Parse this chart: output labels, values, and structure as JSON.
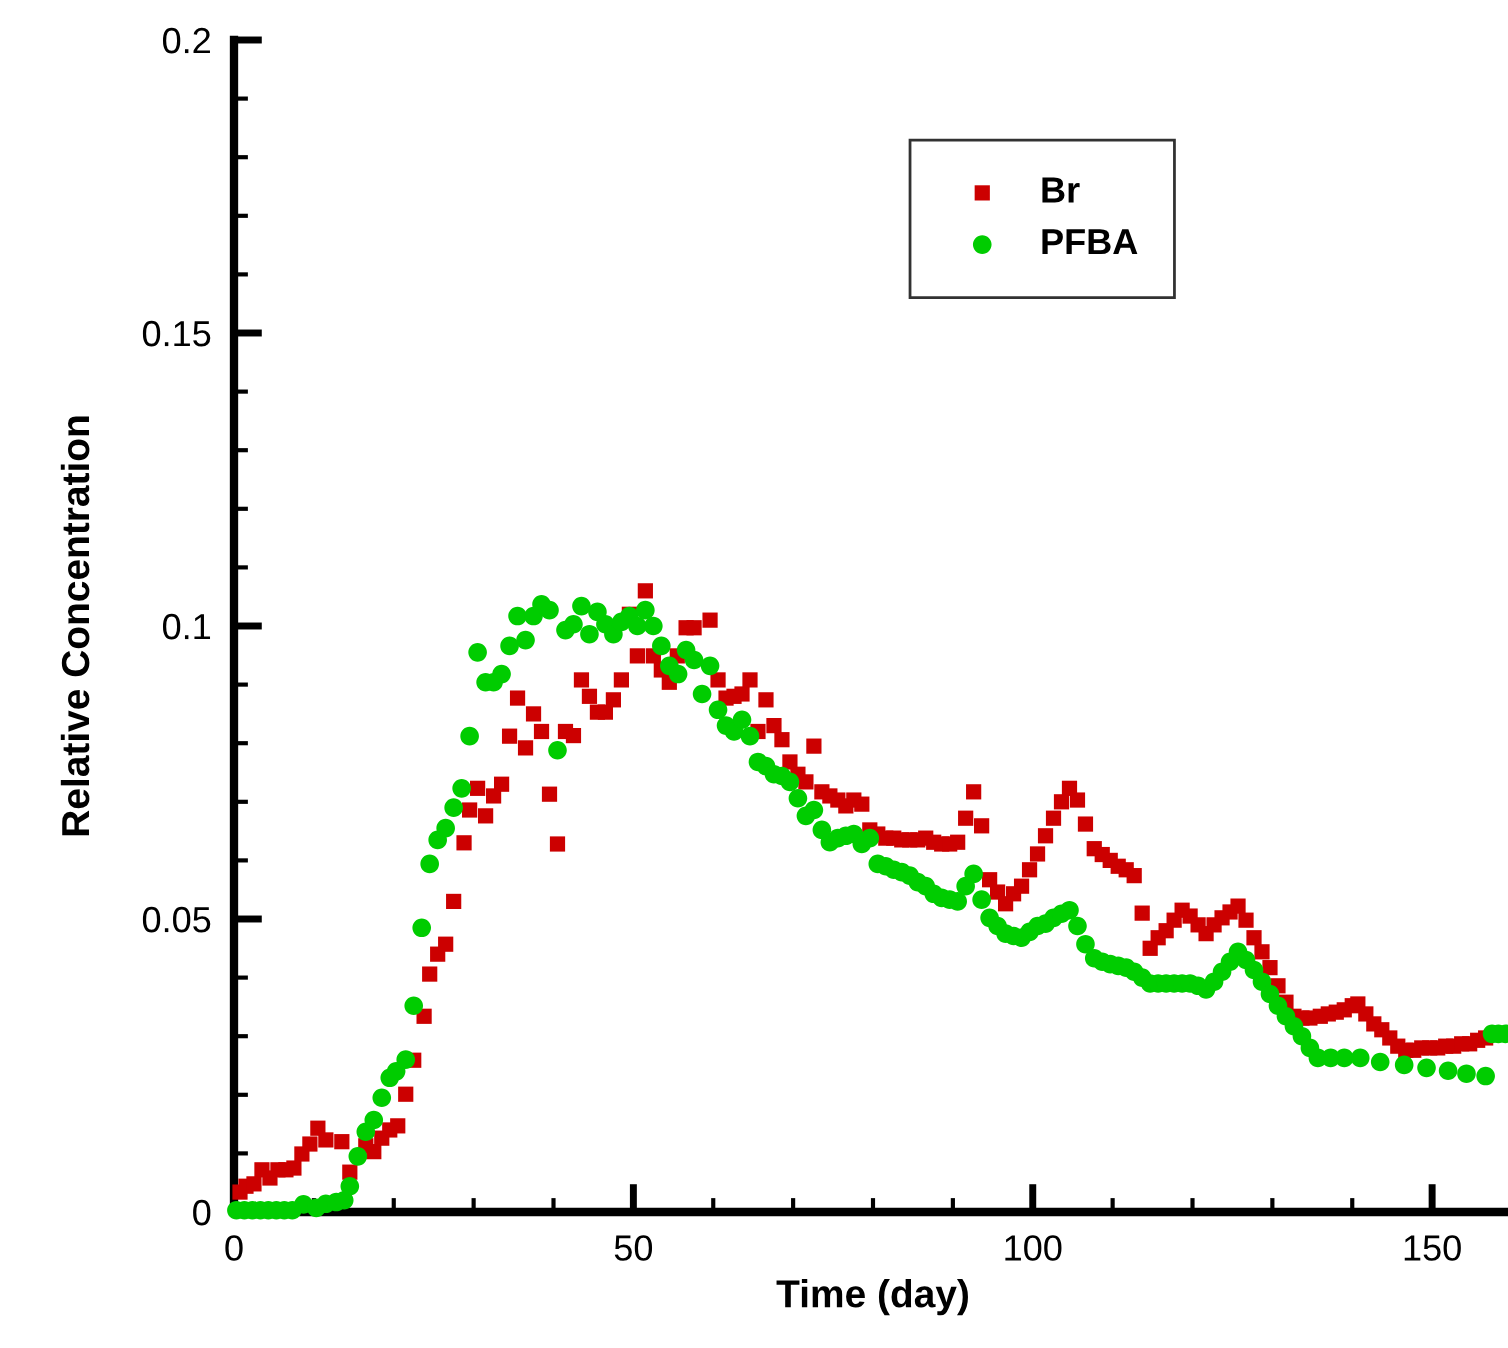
{
  "chart_data": {
    "type": "scatter",
    "xlabel": "Time (day)",
    "ylabel": "Relative Concentration",
    "xlim": [
      0,
      160
    ],
    "ylim": [
      0,
      0.2
    ],
    "xticks": [
      0,
      50,
      100,
      150
    ],
    "yticks": [
      0,
      0.05,
      0.1,
      0.15,
      0.2
    ],
    "grid": false,
    "legend": "top right",
    "series": [
      {
        "name": "Br",
        "color": "#cc0000",
        "marker": "square",
        "x": [
          0.75,
          1.5,
          2.5,
          3.5,
          4.5,
          5.5,
          6.5,
          7.5,
          8.5,
          9.5,
          10.5,
          11.5,
          13.5,
          14.5,
          16.5,
          17.5,
          18.5,
          19.5,
          20.5,
          21.5,
          22.5,
          23.8,
          24.5,
          25.5,
          26.5,
          27.5,
          28.8,
          29.5,
          30.5,
          31.5,
          32.5,
          33.5,
          34.5,
          35.5,
          36.5,
          37.5,
          38.5,
          39.5,
          40.5,
          41.5,
          42.5,
          43.5,
          44.5,
          45.5,
          46.5,
          47.5,
          48.5,
          49.5,
          50.5,
          51.5,
          52.5,
          53.5,
          54.5,
          55.5,
          56.6,
          57.6,
          59.6,
          60.6,
          61.6,
          62.6,
          63.6,
          64.6,
          65.6,
          66.6,
          67.6,
          68.6,
          69.6,
          70.6,
          71.6,
          72.6,
          73.6,
          74.6,
          75.6,
          76.6,
          77.6,
          78.6,
          79.6,
          80.6,
          81.6,
          82.6,
          83.6,
          84.6,
          85.6,
          86.6,
          87.6,
          88.6,
          89.6,
          90.6,
          91.6,
          92.6,
          93.6,
          94.6,
          95.6,
          96.6,
          97.6,
          98.6,
          99.6,
          100.6,
          101.6,
          102.6,
          103.6,
          104.6,
          105.6,
          106.6,
          107.7,
          108.7,
          109.7,
          110.7,
          111.7,
          112.7,
          113.7,
          114.7,
          115.7,
          116.7,
          117.7,
          118.7,
          119.7,
          120.7,
          121.7,
          122.7,
          123.7,
          124.7,
          125.7,
          126.7,
          127.7,
          128.7,
          129.7,
          130.7,
          131.7,
          132.7,
          133.7,
          134.7,
          136,
          137,
          138,
          139,
          140,
          140.7,
          141.7,
          142.7,
          143.7,
          144.7,
          145.7,
          146.7,
          147.7,
          148.7,
          149.7,
          150.7,
          151.7,
          152.7,
          153.7,
          154.7,
          155.7,
          156.7
        ],
        "values": [
          0.0034,
          0.0044,
          0.0048,
          0.0072,
          0.0058,
          0.0072,
          0.0072,
          0.0075,
          0.0099,
          0.0116,
          0.0143,
          0.0123,
          0.012,
          0.0068,
          0.0113,
          0.0103,
          0.0126,
          0.014,
          0.0147,
          0.0201,
          0.0259,
          0.0334,
          0.0406,
          0.044,
          0.0457,
          0.053,
          0.063,
          0.0686,
          0.0723,
          0.0676,
          0.071,
          0.073,
          0.0812,
          0.0877,
          0.0792,
          0.085,
          0.082,
          0.0713,
          0.0628,
          0.082,
          0.0813,
          0.0908,
          0.088,
          0.0853,
          0.0853,
          0.0874,
          0.0908,
          0.102,
          0.0949,
          0.106,
          0.0949,
          0.0925,
          0.0904,
          0.0949,
          0.0997,
          0.0997,
          0.101,
          0.0908,
          0.0877,
          0.088,
          0.0884,
          0.0908,
          0.082,
          0.0874,
          0.083,
          0.0806,
          0.0768,
          0.0747,
          0.0734,
          0.0795,
          0.0717,
          0.071,
          0.0703,
          0.0693,
          0.0703,
          0.0696,
          0.0652,
          0.0645,
          0.0638,
          0.0638,
          0.0635,
          0.0635,
          0.0635,
          0.0638,
          0.0631,
          0.0628,
          0.0628,
          0.0631,
          0.0672,
          0.0717,
          0.0659,
          0.0567,
          0.0546,
          0.0526,
          0.0543,
          0.0556,
          0.0584,
          0.0611,
          0.0642,
          0.0672,
          0.07,
          0.0723,
          0.0703,
          0.0662,
          0.062,
          0.061,
          0.06,
          0.059,
          0.0584,
          0.0574,
          0.051,
          0.045,
          0.0468,
          0.048,
          0.0498,
          0.0515,
          0.0505,
          0.049,
          0.0475,
          0.049,
          0.0502,
          0.0512,
          0.0522,
          0.0498,
          0.0468,
          0.0444,
          0.0417,
          0.0386,
          0.0358,
          0.0334,
          0.0331,
          0.0331,
          0.0334,
          0.0338,
          0.0341,
          0.0345,
          0.0352,
          0.0355,
          0.0338,
          0.0321,
          0.0311,
          0.0297,
          0.0283,
          0.0276,
          0.0276,
          0.028,
          0.028,
          0.028,
          0.0283,
          0.0283,
          0.0287,
          0.0287,
          0.0293,
          0.0297
        ]
      },
      {
        "name": "PFBA",
        "color": "#00cc00",
        "marker": "circle",
        "x": [
          0.3,
          1.3,
          2.3,
          3.3,
          4.3,
          5.3,
          6.3,
          7.3,
          8.7,
          10.3,
          11.5,
          12.8,
          13.8,
          14.5,
          15.5,
          16.5,
          17.5,
          18.5,
          19.5,
          20.3,
          21.5,
          22.5,
          23.5,
          24.5,
          25.5,
          26.5,
          27.5,
          28.5,
          29.5,
          30.5,
          31.5,
          32.5,
          33.5,
          34.5,
          35.5,
          36.5,
          37.5,
          38.5,
          39.5,
          40.5,
          41.5,
          42.5,
          43.5,
          44.5,
          45.5,
          46.5,
          47.5,
          48.5,
          49.5,
          50.5,
          51.5,
          52.5,
          53.5,
          54.5,
          55.6,
          56.6,
          57.6,
          58.6,
          59.6,
          60.6,
          61.6,
          62.6,
          63.6,
          64.6,
          65.6,
          66.6,
          67.6,
          68.6,
          69.6,
          70.6,
          71.6,
          72.6,
          73.6,
          74.6,
          75.6,
          76.6,
          77.6,
          78.6,
          79.6,
          80.6,
          81.6,
          82.6,
          83.6,
          84.6,
          85.6,
          86.6,
          87.6,
          88.6,
          89.6,
          90.6,
          91.6,
          92.6,
          93.6,
          94.6,
          95.6,
          96.6,
          97.6,
          98.6,
          99.6,
          100.6,
          101.6,
          102.6,
          103.6,
          104.6,
          105.6,
          106.6,
          107.7,
          108.7,
          109.7,
          110.7,
          111.7,
          112.7,
          113.7,
          114.7,
          115.7,
          116.7,
          117.7,
          118.7,
          119.7,
          120.7,
          121.7,
          122.7,
          123.7,
          124.7,
          125.7,
          126.7,
          127.7,
          128.7,
          129.7,
          130.7,
          131.7,
          132.7,
          133.7,
          134.7,
          135.7,
          137.3,
          139,
          141,
          143.5,
          146.5,
          149.3,
          152,
          154.3,
          156.7,
          157.5,
          158.3,
          159.2
        ],
        "values": [
          0.0003,
          0.0003,
          0.0003,
          0.0003,
          0.0003,
          0.0003,
          0.0003,
          0.0003,
          0.0013,
          0.0007,
          0.0014,
          0.0017,
          0.002,
          0.0044,
          0.0095,
          0.0137,
          0.0157,
          0.0195,
          0.0229,
          0.024,
          0.026,
          0.0352,
          0.0485,
          0.0594,
          0.0635,
          0.0655,
          0.069,
          0.0723,
          0.0812,
          0.0955,
          0.0904,
          0.0904,
          0.0918,
          0.0966,
          0.1017,
          0.0976,
          0.1017,
          0.1037,
          0.1027,
          0.0788,
          0.0993,
          0.1003,
          0.1034,
          0.0986,
          0.1024,
          0.1003,
          0.0986,
          0.1007,
          0.1017,
          0.1,
          0.1027,
          0.1,
          0.0966,
          0.0932,
          0.0918,
          0.0959,
          0.0942,
          0.0884,
          0.0932,
          0.0857,
          0.083,
          0.082,
          0.084,
          0.0812,
          0.0768,
          0.0761,
          0.0747,
          0.0744,
          0.0734,
          0.0706,
          0.0676,
          0.0686,
          0.0652,
          0.0631,
          0.0638,
          0.0642,
          0.0645,
          0.0628,
          0.0638,
          0.0594,
          0.059,
          0.0584,
          0.058,
          0.0574,
          0.0563,
          0.0556,
          0.0543,
          0.0536,
          0.0533,
          0.053,
          0.0556,
          0.0577,
          0.0533,
          0.0502,
          0.0488,
          0.0475,
          0.0471,
          0.0468,
          0.0478,
          0.0488,
          0.0492,
          0.0502,
          0.0509,
          0.0515,
          0.0488,
          0.0457,
          0.0433,
          0.0427,
          0.0423,
          0.042,
          0.0417,
          0.041,
          0.04,
          0.039,
          0.039,
          0.039,
          0.039,
          0.039,
          0.039,
          0.0386,
          0.038,
          0.0393,
          0.041,
          0.0427,
          0.0444,
          0.043,
          0.0413,
          0.0393,
          0.0372,
          0.0352,
          0.0334,
          0.0317,
          0.03,
          0.028,
          0.0263,
          0.0263,
          0.0263,
          0.0263,
          0.0256,
          0.0251,
          0.0246,
          0.0241,
          0.0236,
          0.0232,
          0.0304,
          0.0304,
          0.0304
        ]
      }
    ]
  }
}
